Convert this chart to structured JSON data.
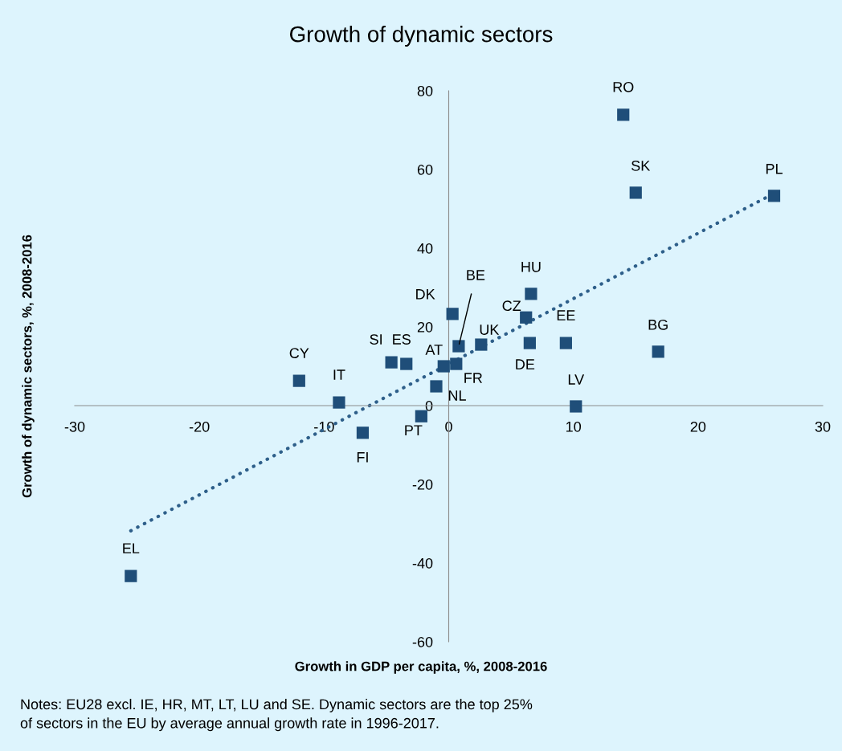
{
  "chart_data": {
    "type": "scatter",
    "title": "Growth of dynamic sectors",
    "xlabel": "Growth in GDP per capita, %, 2008-2016",
    "ylabel": "Growth of dynamic sectors, %, 2008-2016",
    "xlim": [
      -30,
      30
    ],
    "xticks": [
      -30,
      -20,
      -10,
      0,
      10,
      20,
      30
    ],
    "ylim": [
      -60,
      80
    ],
    "yticks": [
      -60,
      -40,
      -20,
      0,
      20,
      40,
      60,
      80
    ],
    "grid": false,
    "marker": "square",
    "series": [
      {
        "color": "#1f4e79",
        "x": [
          14.0,
          15.0,
          26.1,
          6.6,
          0.3,
          6.2,
          0.8,
          2.6,
          6.5,
          9.4,
          16.8,
          -4.6,
          -3.4,
          -0.4,
          0.6,
          -12.0,
          -1.0,
          -8.8,
          10.2,
          -2.2,
          -6.9,
          -25.5
        ],
        "values": [
          73.9,
          54.1,
          53.3,
          28.4,
          23.3,
          22.4,
          15.1,
          15.5,
          15.9,
          15.9,
          13.7,
          11.0,
          10.6,
          10.0,
          10.6,
          6.3,
          4.9,
          0.8,
          -0.2,
          -2.7,
          -6.9,
          -43.3
        ]
      },
      {
        "type": "line",
        "color": "#2e5f8a",
        "line_style": "dotted",
        "marker": "none",
        "x": [
          -25.5,
          25.6
        ],
        "values": [
          -31.8,
          53.1
        ]
      }
    ],
    "annotations": [
      {
        "text": "RO",
        "x": 14.0,
        "y": 73.9
      },
      {
        "text": "SK",
        "x": 15.0,
        "y": 54.1
      },
      {
        "text": "PL",
        "x": 26.1,
        "y": 53.3
      },
      {
        "text": "HU",
        "x": 6.6,
        "y": 28.4
      },
      {
        "text": "DK",
        "x": 0.3,
        "y": 23.3
      },
      {
        "text": "CZ",
        "x": 6.2,
        "y": 22.4
      },
      {
        "text": "BE",
        "x": 0.8,
        "y": 15.1
      },
      {
        "text": "UK",
        "x": 2.6,
        "y": 15.5
      },
      {
        "text": "DE",
        "x": 6.5,
        "y": 15.9
      },
      {
        "text": "EE",
        "x": 9.4,
        "y": 15.9
      },
      {
        "text": "BG",
        "x": 16.8,
        "y": 13.7
      },
      {
        "text": "SI",
        "x": -4.6,
        "y": 11.0
      },
      {
        "text": "ES",
        "x": -3.4,
        "y": 10.6
      },
      {
        "text": "AT",
        "x": -0.4,
        "y": 10.0
      },
      {
        "text": "FR",
        "x": 0.6,
        "y": 10.6
      },
      {
        "text": "CY",
        "x": -12.0,
        "y": 6.3
      },
      {
        "text": "NL",
        "x": -1.0,
        "y": 4.9
      },
      {
        "text": "IT",
        "x": -8.8,
        "y": 0.8
      },
      {
        "text": "LV",
        "x": 10.2,
        "y": -0.2
      },
      {
        "text": "PT",
        "x": -2.2,
        "y": -2.7
      },
      {
        "text": "FI",
        "x": -6.9,
        "y": -6.9
      },
      {
        "text": "EL",
        "x": -25.5,
        "y": -43.3
      },
      "Notes: EU28 excl. IE, HR, MT, LT, LU and SE. Dynamic sectors are the top 25%\nof sectors in the EU by average annual growth rate in 1996-2017."
    ]
  }
}
